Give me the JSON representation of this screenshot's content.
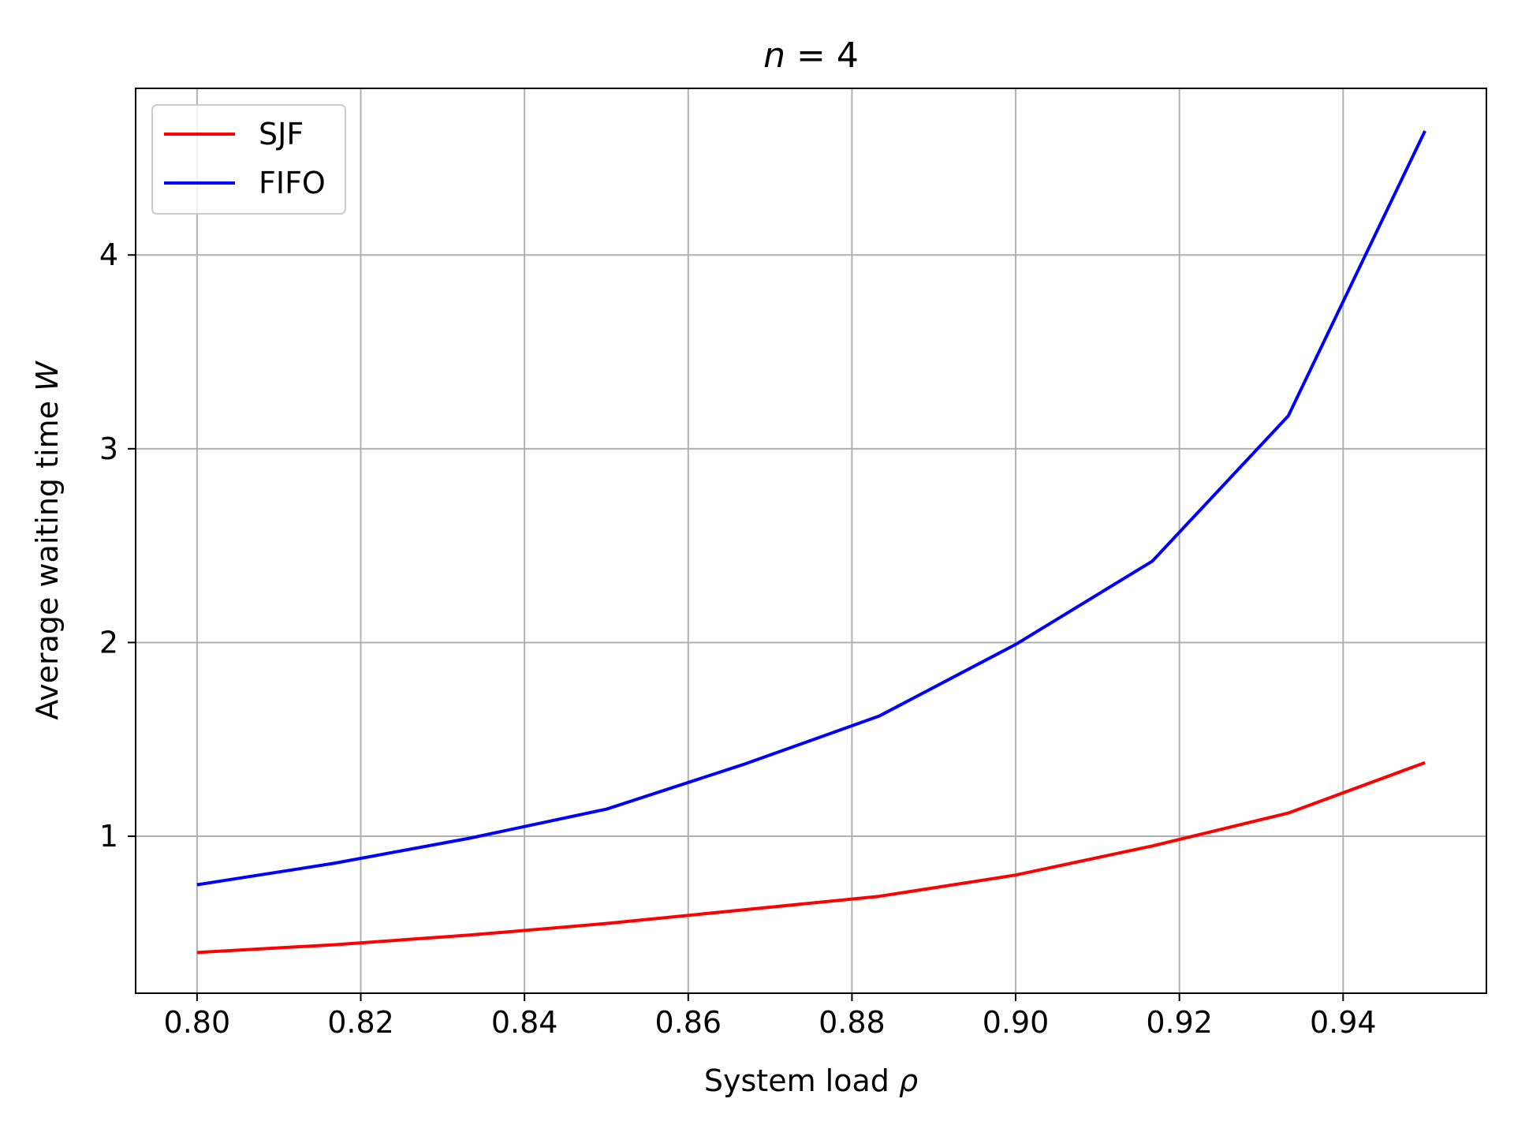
{
  "chart_data": {
    "type": "line",
    "title": {
      "var": "n",
      "rest": " = 4"
    },
    "xlabel": {
      "text": "System load ",
      "var": "ρ"
    },
    "ylabel": {
      "text": "Average waiting time ",
      "var": "W"
    },
    "xlim": [
      0.7925,
      0.9575
    ],
    "ylim": [
      0.19,
      4.86
    ],
    "x_ticks": [
      0.8,
      0.82,
      0.84,
      0.86,
      0.88,
      0.9,
      0.92,
      0.94
    ],
    "x_tick_labels": [
      "0.80",
      "0.82",
      "0.84",
      "0.86",
      "0.88",
      "0.90",
      "0.92",
      "0.94"
    ],
    "y_ticks": [
      1,
      2,
      3,
      4
    ],
    "y_tick_labels": [
      "1",
      "2",
      "3",
      "4"
    ],
    "grid": true,
    "legend": "upper-left",
    "x": [
      0.8,
      0.8167,
      0.8333,
      0.85,
      0.8667,
      0.8833,
      0.9,
      0.9167,
      0.9333,
      0.95
    ],
    "series": [
      {
        "name": "SJF",
        "color": "#ff0000",
        "values": [
          0.4,
          0.44,
          0.49,
          0.55,
          0.62,
          0.69,
          0.8,
          0.95,
          1.12,
          1.38
        ]
      },
      {
        "name": "FIFO",
        "color": "#0000ff",
        "values": [
          0.75,
          0.86,
          0.99,
          1.14,
          1.37,
          1.62,
          1.99,
          2.42,
          3.17,
          4.64
        ]
      }
    ]
  }
}
